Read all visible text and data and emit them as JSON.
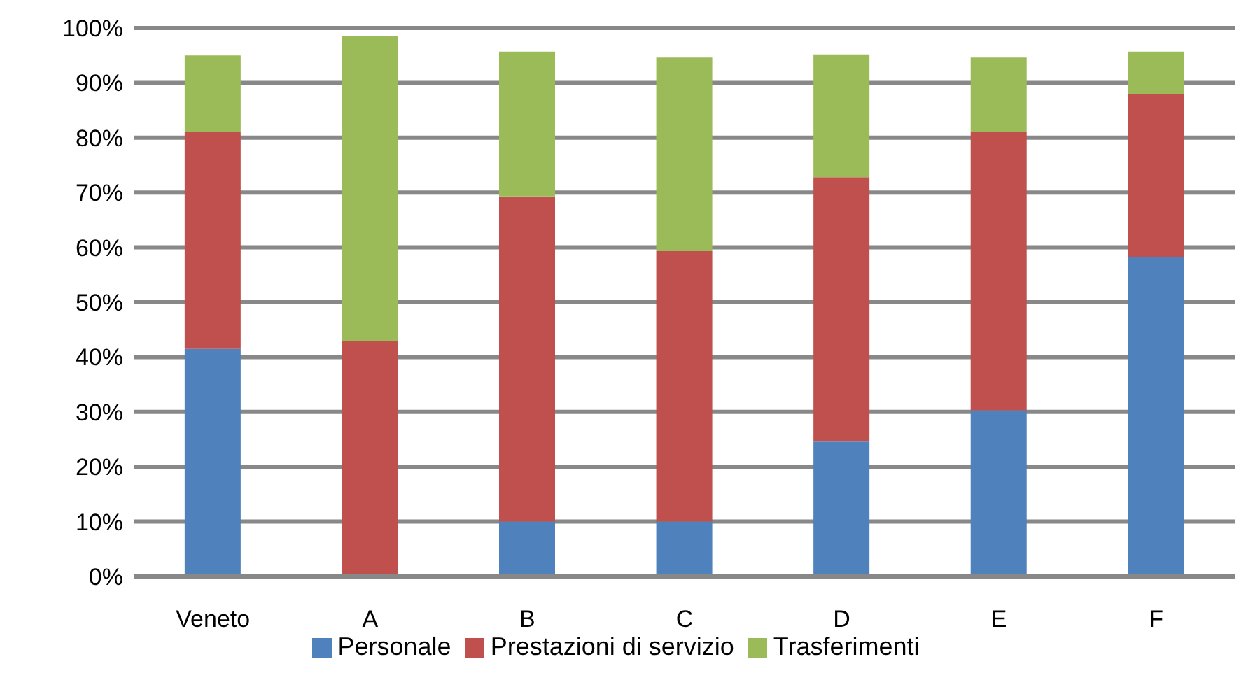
{
  "chart_data": {
    "type": "bar",
    "stacked": true,
    "categories": [
      "Veneto",
      "A",
      "B",
      "C",
      "D",
      "E",
      "F"
    ],
    "series": [
      {
        "name": "Personale",
        "color": "#4f81bd",
        "values": [
          41.5,
          0,
          10,
          10,
          24.6,
          30.3,
          58.3
        ]
      },
      {
        "name": "Prestazioni di servizio",
        "color": "#c0504d",
        "values": [
          39.5,
          43,
          59.3,
          49.3,
          48.2,
          50.8,
          29.7
        ]
      },
      {
        "name": "Trasferimenti",
        "color": "#9bbb59",
        "values": [
          14,
          55.5,
          26.4,
          35.3,
          22.4,
          13.5,
          7.7
        ]
      }
    ],
    "ylim": [
      0,
      100
    ],
    "yticks": [
      {
        "value": 0,
        "label": "0%"
      },
      {
        "value": 10,
        "label": "10%"
      },
      {
        "value": 20,
        "label": "20%"
      },
      {
        "value": 30,
        "label": "30%"
      },
      {
        "value": 40,
        "label": "40%"
      },
      {
        "value": 50,
        "label": "50%"
      },
      {
        "value": 60,
        "label": "60%"
      },
      {
        "value": 70,
        "label": "70%"
      },
      {
        "value": 80,
        "label": "80%"
      },
      {
        "value": 90,
        "label": "90%"
      },
      {
        "value": 100,
        "label": "100%"
      }
    ],
    "grid": "y",
    "legend": "bottom"
  }
}
